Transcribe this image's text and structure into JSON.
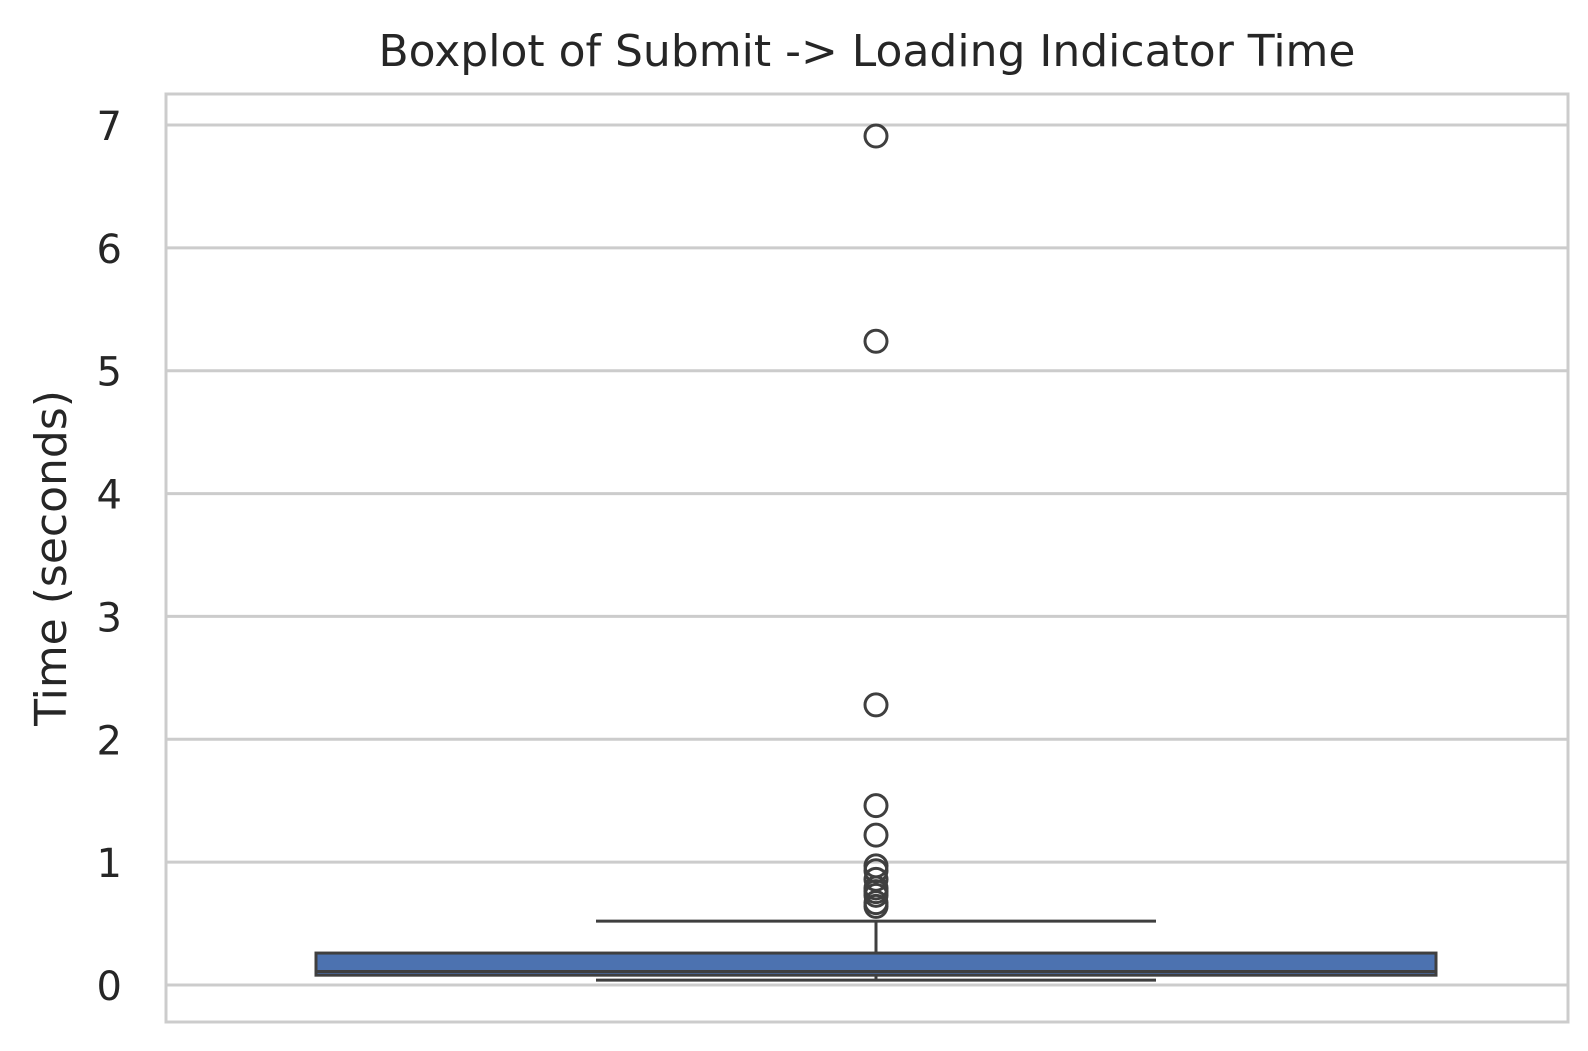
{
  "chart_data": {
    "type": "boxplot",
    "title": "Boxplot of Submit -> Loading Indicator Time",
    "xlabel": "",
    "ylabel": "Time (seconds)",
    "ylim": [
      -0.3,
      7.25
    ],
    "yticks": [
      0,
      1,
      2,
      3,
      4,
      5,
      6,
      7
    ],
    "grid": true,
    "legend": "none",
    "box": {
      "whisker_low": 0.04,
      "q1": 0.08,
      "median": 0.11,
      "q3": 0.26,
      "whisker_high": 0.52
    },
    "outliers": [
      6.91,
      5.24,
      2.28,
      1.46,
      1.22,
      0.97,
      0.93,
      0.86,
      0.79,
      0.76,
      0.73,
      0.67,
      0.64
    ],
    "colors": {
      "box_fill": "#4c72b0",
      "line": "#3f3f3f",
      "grid": "#cccccc",
      "spine": "#cccccc",
      "text": "#262626"
    }
  }
}
